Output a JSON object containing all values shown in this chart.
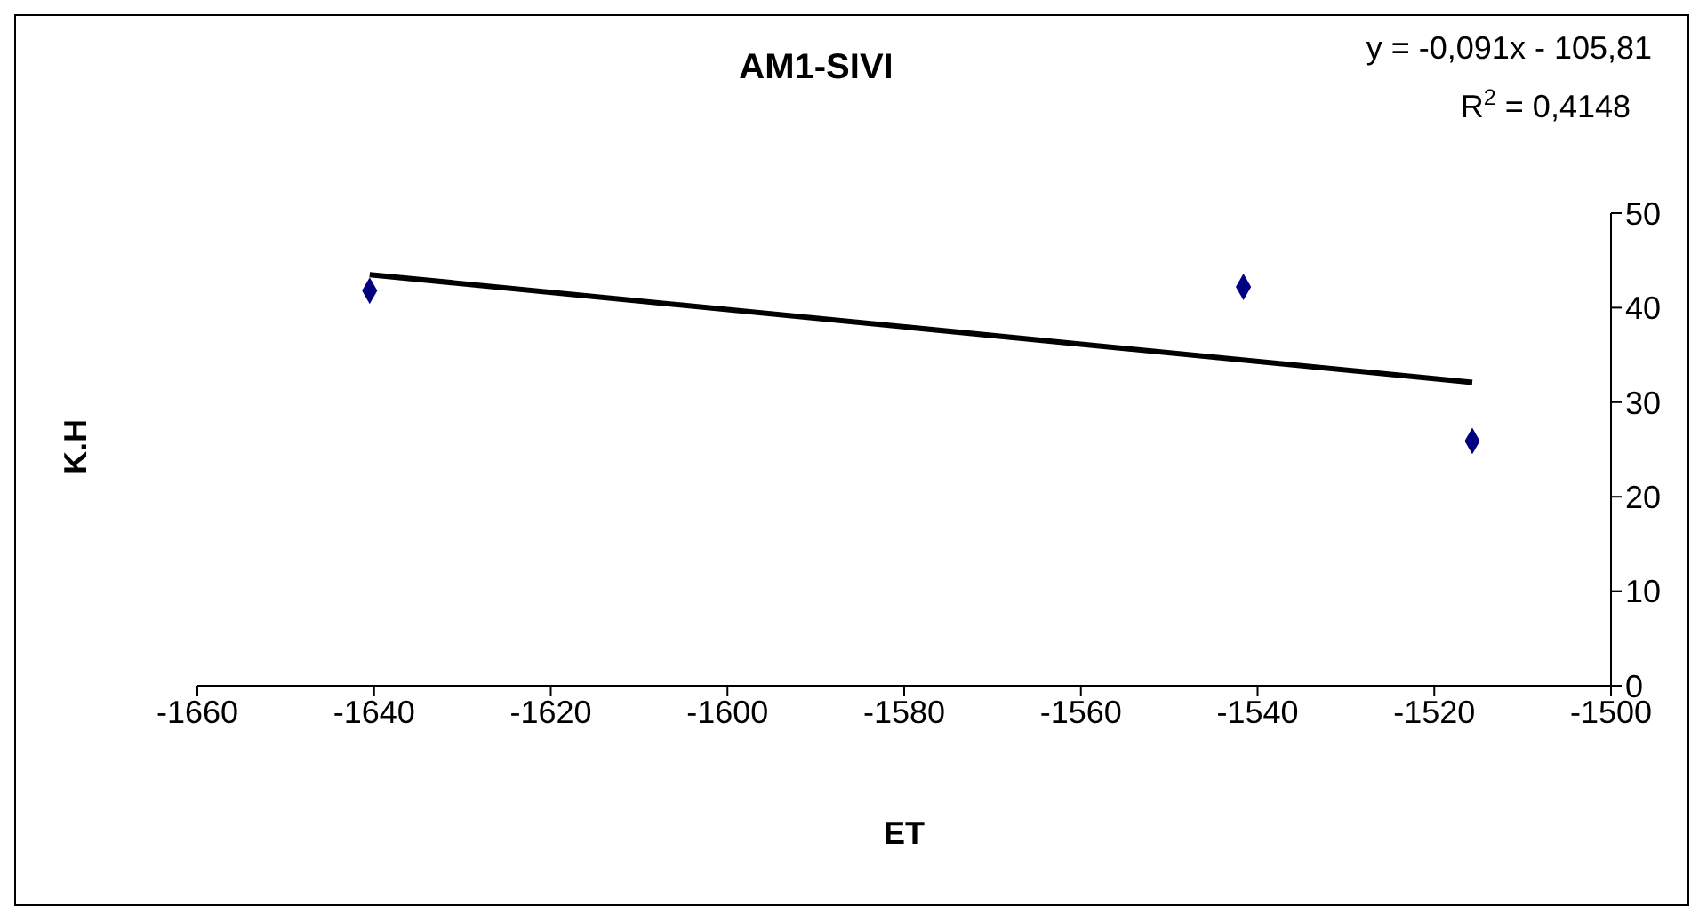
{
  "chart_data": {
    "type": "scatter",
    "title": "AM1-SIVI",
    "xlabel": "ET",
    "ylabel": "K.H",
    "annotations": [
      "y = -0,091x - 105,81",
      "R$^{2}$ = 0,4148"
    ],
    "series": [
      {
        "color": "#000080",
        "marker": "diamond",
        "x": [
          -1640.5,
          -1541.6,
          -1515.7
        ],
        "values": [
          41.8,
          42.2,
          25.9
        ]
      },
      {
        "type": "line",
        "color": "#000000",
        "marker": "none",
        "x": [
          -1640.5,
          -1515.7
        ],
        "values": [
          43.5,
          32.1
        ]
      }
    ],
    "xlim": [
      -1660,
      -1500
    ],
    "xticks": [
      -1660,
      -1640,
      -1620,
      -1600,
      -1580,
      -1560,
      -1540,
      -1520,
      -1500
    ],
    "ylim": [
      0,
      50
    ],
    "yticks": [
      0,
      10,
      20,
      30,
      40,
      50
    ],
    "grid": false,
    "legend": false
  }
}
